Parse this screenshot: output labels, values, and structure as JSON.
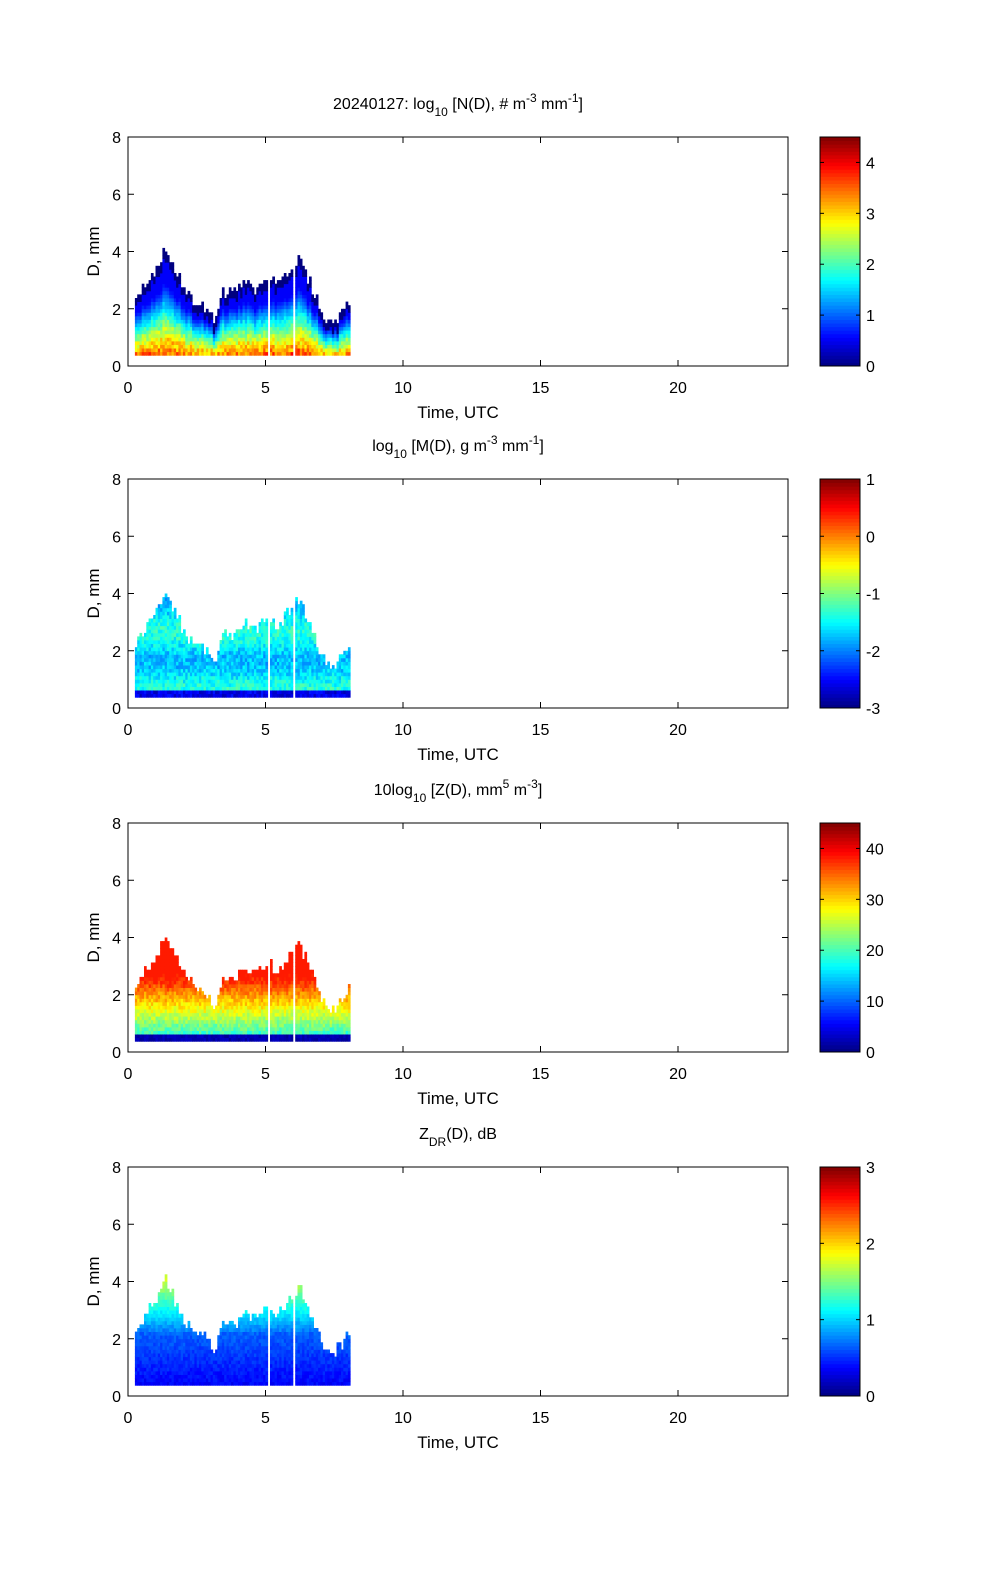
{
  "chart_data": [
    {
      "type": "heatmap",
      "id": "nd",
      "title_parts": [
        "20240127: log",
        "10",
        " [N(D), # m",
        "-3",
        " mm",
        "-1",
        "]"
      ],
      "title_roles": [
        "t",
        "sub",
        "t",
        "sup",
        "t",
        "sup",
        "t"
      ],
      "xlabel": "Time, UTC",
      "ylabel": "D, mm",
      "xlim": [
        0,
        24
      ],
      "ylim": [
        0,
        8
      ],
      "xticks": [
        0,
        5,
        10,
        15,
        20
      ],
      "yticks": [
        0,
        2,
        4,
        6,
        8
      ],
      "colorbar": {
        "min": 0,
        "max": 4.5,
        "ticks": [
          0,
          1,
          2,
          3,
          4
        ]
      },
      "data_time_range": [
        0.25,
        8.0
      ],
      "gaps_at": [
        5.1,
        6.0
      ]
    },
    {
      "type": "heatmap",
      "id": "md",
      "title_parts": [
        "log",
        "10",
        " [M(D), g m",
        "-3",
        " mm",
        "-1",
        "]"
      ],
      "title_roles": [
        "t",
        "sub",
        "t",
        "sup",
        "t",
        "sup",
        "t"
      ],
      "xlabel": "Time, UTC",
      "ylabel": "D, mm",
      "xlim": [
        0,
        24
      ],
      "ylim": [
        0,
        8
      ],
      "xticks": [
        0,
        5,
        10,
        15,
        20
      ],
      "yticks": [
        0,
        2,
        4,
        6,
        8
      ],
      "colorbar": {
        "min": -3,
        "max": 1,
        "ticks": [
          -3,
          -2,
          -1,
          0,
          1
        ]
      },
      "data_time_range": [
        0.25,
        8.0
      ],
      "gaps_at": [
        5.1,
        6.0
      ]
    },
    {
      "type": "heatmap",
      "id": "zd",
      "title_parts": [
        "10log",
        "10",
        " [Z(D),  mm",
        "5",
        " m",
        "-3",
        "]"
      ],
      "title_roles": [
        "t",
        "sub",
        "t",
        "sup",
        "t",
        "sup",
        "t"
      ],
      "xlabel": "Time, UTC",
      "ylabel": "D, mm",
      "xlim": [
        0,
        24
      ],
      "ylim": [
        0,
        8
      ],
      "xticks": [
        0,
        5,
        10,
        15,
        20
      ],
      "yticks": [
        0,
        2,
        4,
        6,
        8
      ],
      "colorbar": {
        "min": 0,
        "max": 45,
        "ticks": [
          0,
          10,
          20,
          30,
          40
        ]
      },
      "data_time_range": [
        0.25,
        8.0
      ],
      "gaps_at": [
        5.1,
        6.0
      ]
    },
    {
      "type": "heatmap",
      "id": "zdr",
      "title_parts": [
        "Z",
        "DR",
        "(D), dB"
      ],
      "title_roles": [
        "t",
        "sub",
        "t"
      ],
      "xlabel": "Time, UTC",
      "ylabel": "D, mm",
      "xlim": [
        0,
        24
      ],
      "ylim": [
        0,
        8
      ],
      "xticks": [
        0,
        5,
        10,
        15,
        20
      ],
      "yticks": [
        0,
        2,
        4,
        6,
        8
      ],
      "colorbar": {
        "min": 0,
        "max": 3,
        "ticks": [
          0,
          1,
          2,
          3
        ]
      },
      "data_time_range": [
        0.25,
        8.0
      ],
      "gaps_at": [
        5.1,
        6.0
      ]
    }
  ],
  "colormap": "jet"
}
